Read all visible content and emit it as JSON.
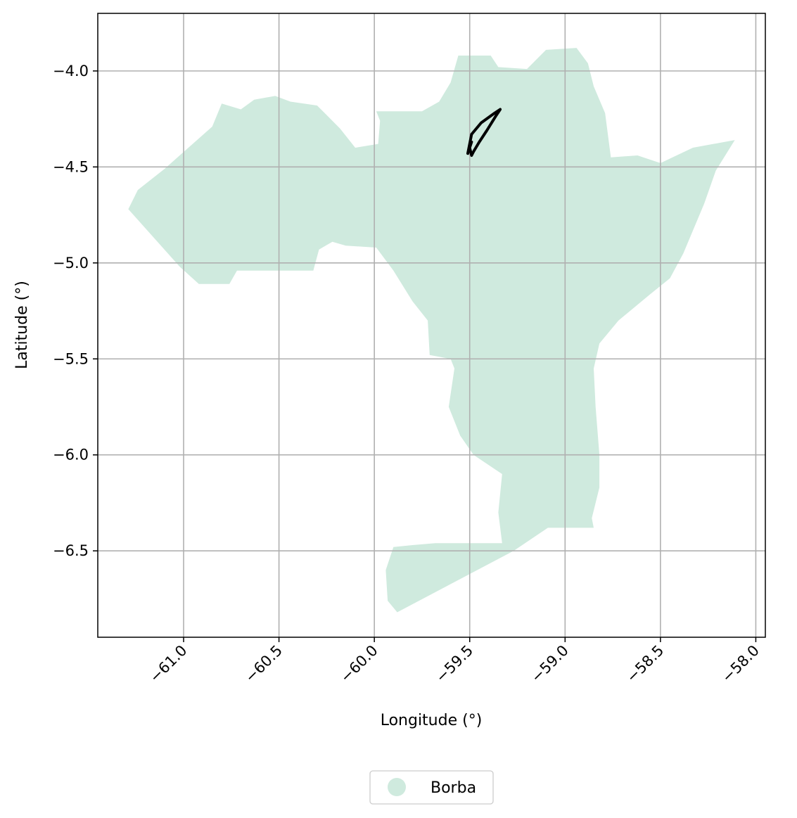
{
  "chart_data": {
    "type": "map",
    "xlabel": "Longitude (°)",
    "ylabel": "Latitude (°)",
    "xlim": [
      -61.45,
      -57.95
    ],
    "ylim": [
      -6.95,
      -3.7
    ],
    "xticks": [
      -61.0,
      -60.5,
      -60.0,
      -59.5,
      -59.0,
      -58.5,
      -58.0
    ],
    "xtick_labels": [
      "−61.0",
      "−60.5",
      "−60.0",
      "−59.5",
      "−59.0",
      "−58.5",
      "−58.0"
    ],
    "yticks": [
      -4.0,
      -4.5,
      -5.0,
      -5.5,
      -6.0,
      -6.5
    ],
    "ytick_labels": [
      "−4.0",
      "−4.5",
      "−5.0",
      "−5.5",
      "−6.0",
      "−6.5"
    ],
    "grid": true,
    "legend_position": "bottom-center",
    "region": {
      "name": "Borba",
      "color": "#cfeade",
      "outline": [
        [
          -61.29,
          -4.72
        ],
        [
          -61.24,
          -4.62
        ],
        [
          -61.1,
          -4.51
        ],
        [
          -60.85,
          -4.29
        ],
        [
          -60.8,
          -4.17
        ],
        [
          -60.7,
          -4.2
        ],
        [
          -60.63,
          -4.15
        ],
        [
          -60.52,
          -4.13
        ],
        [
          -60.44,
          -4.16
        ],
        [
          -60.3,
          -4.18
        ],
        [
          -60.26,
          -4.22
        ],
        [
          -60.18,
          -4.3
        ],
        [
          -60.1,
          -4.4
        ],
        [
          -59.98,
          -4.38
        ],
        [
          -59.97,
          -4.26
        ],
        [
          -59.99,
          -4.21
        ],
        [
          -59.75,
          -4.21
        ],
        [
          -59.66,
          -4.16
        ],
        [
          -59.6,
          -4.06
        ],
        [
          -59.56,
          -3.92
        ],
        [
          -59.39,
          -3.92
        ],
        [
          -59.35,
          -3.98
        ],
        [
          -59.2,
          -3.99
        ],
        [
          -59.1,
          -3.89
        ],
        [
          -58.94,
          -3.88
        ],
        [
          -58.88,
          -3.96
        ],
        [
          -58.85,
          -4.08
        ],
        [
          -58.79,
          -4.22
        ],
        [
          -58.76,
          -4.45
        ],
        [
          -58.62,
          -4.44
        ],
        [
          -58.5,
          -4.48
        ],
        [
          -58.33,
          -4.4
        ],
        [
          -58.11,
          -4.36
        ],
        [
          -58.21,
          -4.52
        ],
        [
          -58.27,
          -4.69
        ],
        [
          -58.38,
          -4.95
        ],
        [
          -58.45,
          -5.08
        ],
        [
          -58.55,
          -5.16
        ],
        [
          -58.72,
          -5.3
        ],
        [
          -58.82,
          -5.42
        ],
        [
          -58.85,
          -5.55
        ],
        [
          -58.84,
          -5.75
        ],
        [
          -58.82,
          -6.0
        ],
        [
          -58.82,
          -6.17
        ],
        [
          -58.86,
          -6.33
        ],
        [
          -58.85,
          -6.38
        ],
        [
          -59.09,
          -6.38
        ],
        [
          -59.27,
          -6.5
        ],
        [
          -59.88,
          -6.82
        ],
        [
          -59.93,
          -6.76
        ],
        [
          -59.94,
          -6.6
        ],
        [
          -59.9,
          -6.48
        ],
        [
          -59.8,
          -6.47
        ],
        [
          -59.68,
          -6.46
        ],
        [
          -59.33,
          -6.46
        ],
        [
          -59.35,
          -6.3
        ],
        [
          -59.33,
          -6.1
        ],
        [
          -59.48,
          -6.0
        ],
        [
          -59.55,
          -5.9
        ],
        [
          -59.61,
          -5.75
        ],
        [
          -59.58,
          -5.55
        ],
        [
          -59.6,
          -5.5
        ],
        [
          -59.71,
          -5.48
        ],
        [
          -59.72,
          -5.3
        ],
        [
          -59.8,
          -5.2
        ],
        [
          -59.9,
          -5.04
        ],
        [
          -59.99,
          -4.92
        ],
        [
          -60.15,
          -4.91
        ],
        [
          -60.22,
          -4.89
        ],
        [
          -60.29,
          -4.93
        ],
        [
          -60.32,
          -5.04
        ],
        [
          -60.72,
          -5.04
        ],
        [
          -60.76,
          -5.11
        ],
        [
          -60.92,
          -5.11
        ],
        [
          -61.02,
          -5.02
        ],
        [
          -61.29,
          -4.72
        ]
      ],
      "track": [
        [
          -59.51,
          -4.43
        ],
        [
          -59.49,
          -4.33
        ],
        [
          -59.44,
          -4.27
        ],
        [
          -59.37,
          -4.22
        ],
        [
          -59.34,
          -4.2
        ],
        [
          -59.36,
          -4.23
        ],
        [
          -59.41,
          -4.31
        ],
        [
          -59.45,
          -4.37
        ],
        [
          -59.48,
          -4.42
        ],
        [
          -59.49,
          -4.44
        ],
        [
          -59.5,
          -4.4
        ],
        [
          -59.49,
          -4.37
        ]
      ]
    },
    "legend": [
      {
        "label": "Borba",
        "color": "#cfeade",
        "marker": "circle"
      }
    ]
  }
}
